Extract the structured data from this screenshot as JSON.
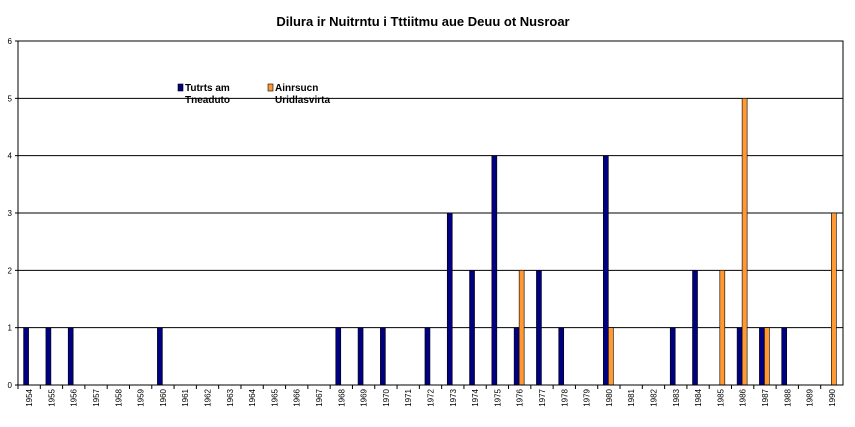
{
  "chart_data": {
    "type": "bar",
    "title": "Dilura ir Nuitrntu i Tttiitmu aue Deuu ot Nusroar",
    "xlabel": "",
    "ylabel": "",
    "ylim": [
      0,
      6
    ],
    "yticks": [
      0,
      1,
      2,
      3,
      4,
      5,
      6
    ],
    "grid": true,
    "legend_position": "top-left",
    "categories": [
      "1954",
      "1955",
      "1956",
      "1957",
      "1958",
      "1959",
      "1960",
      "1961",
      "1962",
      "1963",
      "1964",
      "1965",
      "1966",
      "1967",
      "1968",
      "1969",
      "1970",
      "1971",
      "1972",
      "1973",
      "1974",
      "1975",
      "1976",
      "1977",
      "1978",
      "1979",
      "1980",
      "1981",
      "1982",
      "1983",
      "1984",
      "1985",
      "1986",
      "1987",
      "1988",
      "1989",
      "1990"
    ],
    "series": [
      {
        "name": "Tutrts am Tneaduto",
        "legend_lines": [
          "Tutrts am",
          "Tneaduto"
        ],
        "color": "#000080",
        "values": [
          1,
          1,
          1,
          0,
          0,
          0,
          1,
          0,
          0,
          0,
          0,
          0,
          0,
          0,
          1,
          1,
          1,
          0,
          1,
          3,
          2,
          4,
          1,
          2,
          1,
          0,
          4,
          0,
          0,
          1,
          2,
          0,
          1,
          1,
          1,
          0,
          0
        ]
      },
      {
        "name": "Ainrsucn Uridlasvirta",
        "legend_lines": [
          "Ainrsucn",
          "Uridlasvirta"
        ],
        "color": "#FF9933",
        "values": [
          0,
          0,
          0,
          0,
          0,
          0,
          0,
          0,
          0,
          0,
          0,
          0,
          0,
          0,
          0,
          0,
          0,
          0,
          0,
          0,
          0,
          0,
          2,
          0,
          0,
          0,
          1,
          0,
          0,
          0,
          0,
          2,
          5,
          1,
          0,
          0,
          3
        ]
      }
    ]
  }
}
